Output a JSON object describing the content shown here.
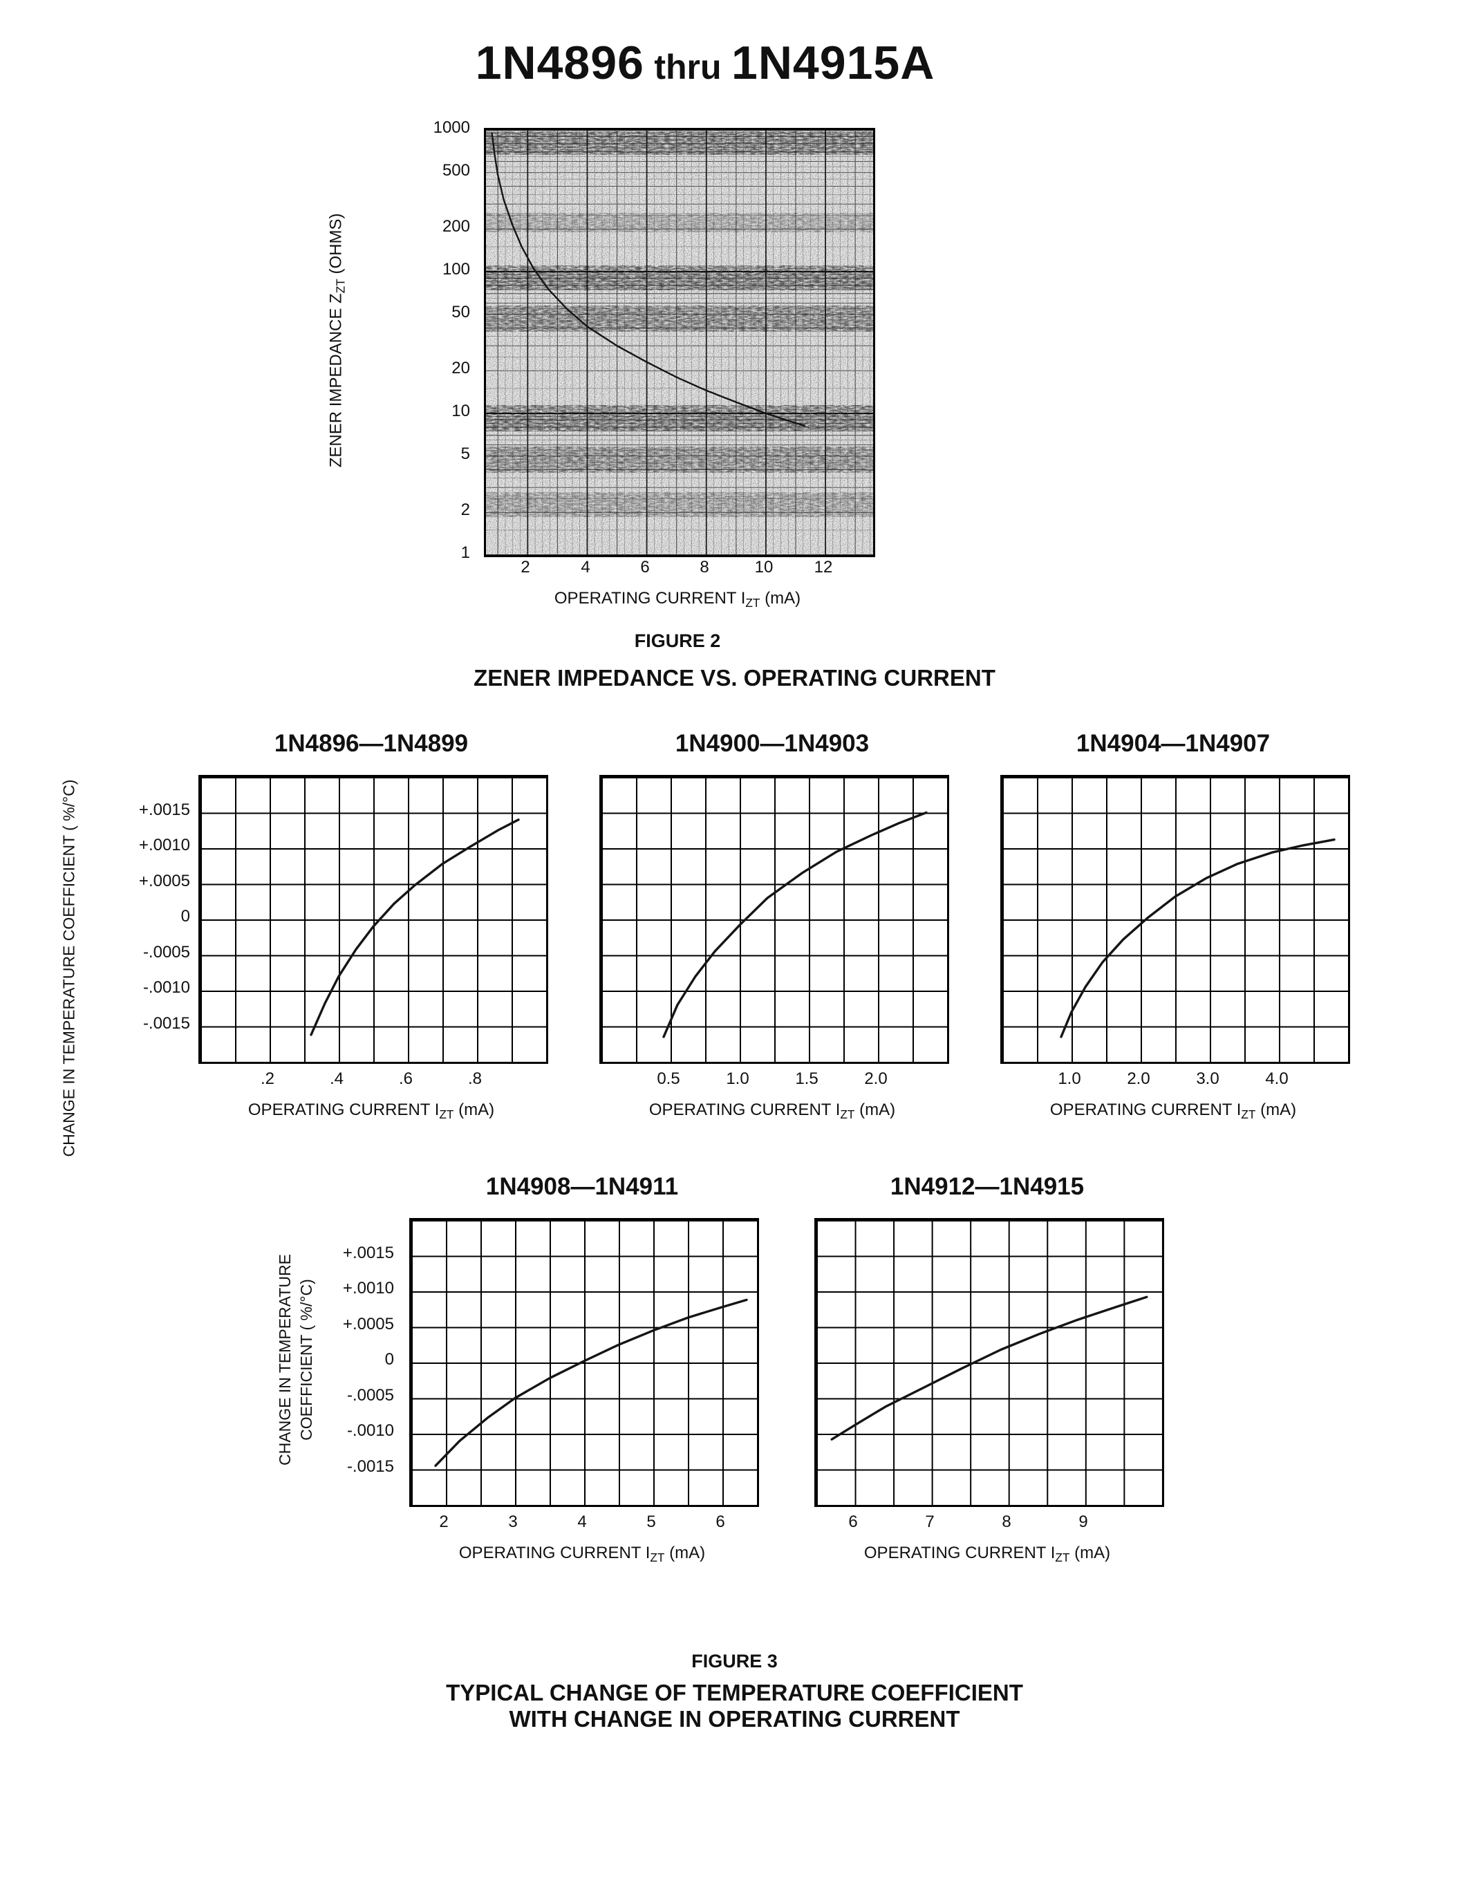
{
  "header": {
    "part_start": "1N4896",
    "thru": "thru",
    "part_end": "1N4915A"
  },
  "figure2": {
    "caption": "FIGURE 2",
    "heading": "ZENER IMPEDANCE VS. OPERATING CURRENT",
    "y_label": {
      "prefix": "ZENER IMPEDANCE Z",
      "sub": "ZT",
      "suffix": " (OHMS)"
    },
    "x_label": {
      "prefix": "OPERATING CURRENT I",
      "sub": "ZT",
      "suffix": " (mA)"
    },
    "y_ticks": [
      "1000",
      "500",
      "200",
      "100",
      "50",
      "20",
      "10",
      "5",
      "2",
      "1"
    ],
    "x_ticks": [
      "2",
      "4",
      "6",
      "8",
      "10",
      "12"
    ]
  },
  "figure3": {
    "caption": "FIGURE 3",
    "heading_line1": "TYPICAL CHANGE OF TEMPERATURE COEFFICIENT",
    "heading_line2": "WITH CHANGE IN OPERATING CURRENT",
    "row1_y_axis_title": "CHANGE IN TEMPERATURE COEFFICIENT ( %/°C)",
    "row2_y_axis_title_line1": "CHANGE IN TEMPERATURE",
    "row2_y_axis_title_line2": "COEFFICIENT ( %/°C)",
    "x_label": {
      "prefix": "OPERATING CURRENT I",
      "sub": "ZT",
      "suffix": " (mA)"
    },
    "y_ticks": [
      "+.0015",
      "+.0010",
      "+.0005",
      "0",
      "-.0005",
      "-.0010",
      "-.0015"
    ],
    "charts": [
      {
        "title": "1N4896—1N4899",
        "x_ticks": [
          ".2",
          ".4",
          ".6",
          ".8"
        ]
      },
      {
        "title": "1N4900—1N4903",
        "x_ticks": [
          "0.5",
          "1.0",
          "1.5",
          "2.0"
        ]
      },
      {
        "title": "1N4904—1N4907",
        "x_ticks": [
          "1.0",
          "2.0",
          "3.0",
          "4.0"
        ]
      },
      {
        "title": "1N4908—1N4911",
        "x_ticks": [
          "2",
          "3",
          "4",
          "5",
          "6"
        ]
      },
      {
        "title": "1N4912—1N4915",
        "x_ticks": [
          "6",
          "7",
          "8",
          "9"
        ]
      }
    ]
  },
  "chart_data": [
    {
      "id": "fig2",
      "type": "line",
      "title": "ZENER IMPEDANCE VS. OPERATING CURRENT",
      "xlabel": "OPERATING CURRENT IZT (mA)",
      "ylabel": "ZENER IMPEDANCE ZZT (OHMS)",
      "xlog": false,
      "ylog": true,
      "xlim": [
        0.6,
        13.6
      ],
      "ylim": [
        1,
        1000
      ],
      "x_ticks": [
        2,
        4,
        6,
        8,
        10,
        12
      ],
      "y_ticks": [
        1000,
        500,
        200,
        100,
        50,
        20,
        10,
        5,
        2,
        1
      ],
      "x": [
        0.8,
        0.9,
        1.0,
        1.2,
        1.5,
        1.8,
        2.2,
        2.7,
        3.3,
        4.0,
        5.0,
        6.0,
        7.0,
        8.0,
        9.0,
        10.0,
        10.8,
        11.3
      ],
      "y": [
        950,
        650,
        480,
        320,
        210,
        150,
        105,
        75,
        55,
        41,
        30,
        23,
        18,
        14.5,
        12,
        10,
        8.8,
        8.2
      ],
      "stroke_width": 2.4
    },
    {
      "id": "tc1",
      "type": "line",
      "title": "1N4896—1N4899",
      "xlabel": "OPERATING CURRENT IZT (mA)",
      "ylabel": "CHANGE IN TEMPERATURE COEFFICIENT ( %/°C)",
      "xlim": [
        0,
        1.0
      ],
      "ylim": [
        -0.002,
        0.002
      ],
      "x_ticks": [
        0.2,
        0.4,
        0.6,
        0.8
      ],
      "x": [
        0.32,
        0.36,
        0.4,
        0.45,
        0.5,
        0.56,
        0.62,
        0.7,
        0.78,
        0.86,
        0.92
      ],
      "y": [
        -0.00162,
        -0.00118,
        -0.0008,
        -0.00042,
        -0.0001,
        0.00022,
        0.00048,
        0.00078,
        0.00102,
        0.00125,
        0.0014
      ]
    },
    {
      "id": "tc2",
      "type": "line",
      "title": "1N4900—1N4903",
      "xlabel": "OPERATING CURRENT IZT (mA)",
      "ylabel": "CHANGE IN TEMPERATURE COEFFICIENT ( %/°C)",
      "xlim": [
        0,
        2.5
      ],
      "ylim": [
        -0.002,
        0.002
      ],
      "x_ticks": [
        0.5,
        1.0,
        1.5,
        2.0
      ],
      "x": [
        0.45,
        0.55,
        0.68,
        0.82,
        1.0,
        1.2,
        1.45,
        1.7,
        1.95,
        2.15,
        2.35
      ],
      "y": [
        -0.00165,
        -0.0012,
        -0.0008,
        -0.00045,
        -8e-05,
        0.0003,
        0.00065,
        0.00095,
        0.00118,
        0.00135,
        0.0015
      ]
    },
    {
      "id": "tc3",
      "type": "line",
      "title": "1N4904—1N4907",
      "xlabel": "OPERATING CURRENT IZT (mA)",
      "ylabel": "CHANGE IN TEMPERATURE COEFFICIENT ( %/°C)",
      "xlim": [
        0,
        5.0
      ],
      "ylim": [
        -0.002,
        0.002
      ],
      "x_ticks": [
        1.0,
        2.0,
        3.0,
        4.0
      ],
      "x": [
        0.85,
        1.0,
        1.2,
        1.45,
        1.75,
        2.1,
        2.5,
        2.95,
        3.4,
        3.9,
        4.35,
        4.8
      ],
      "y": [
        -0.00165,
        -0.0013,
        -0.00095,
        -0.0006,
        -0.00028,
        2e-05,
        0.00032,
        0.00058,
        0.00078,
        0.00094,
        0.00104,
        0.00112
      ]
    },
    {
      "id": "tc4",
      "type": "line",
      "title": "1N4908—1N4911",
      "xlabel": "OPERATING CURRENT IZT (mA)",
      "ylabel": "CHANGE IN TEMPERATURE COEFFICIENT ( %/°C)",
      "xlim": [
        1.5,
        6.5
      ],
      "ylim": [
        -0.002,
        0.002
      ],
      "x_ticks": [
        2,
        3,
        4,
        5,
        6
      ],
      "x": [
        1.85,
        2.2,
        2.6,
        3.0,
        3.5,
        4.0,
        4.5,
        5.0,
        5.5,
        6.0,
        6.35
      ],
      "y": [
        -0.00145,
        -0.0011,
        -0.00078,
        -0.0005,
        -0.00022,
        2e-05,
        0.00025,
        0.00045,
        0.00063,
        0.00078,
        0.00088
      ]
    },
    {
      "id": "tc5",
      "type": "line",
      "title": "1N4912—1N4915",
      "xlabel": "OPERATING CURRENT IZT (mA)",
      "ylabel": "CHANGE IN TEMPERATURE COEFFICIENT ( %/°C)",
      "xlim": [
        5.5,
        10.0
      ],
      "ylim": [
        -0.002,
        0.002
      ],
      "x_ticks": [
        6,
        7,
        8,
        9
      ],
      "x": [
        5.7,
        6.0,
        6.4,
        6.9,
        7.4,
        7.9,
        8.4,
        8.9,
        9.4,
        9.8
      ],
      "y": [
        -0.00108,
        -0.00088,
        -0.00062,
        -0.00035,
        -8e-05,
        0.00018,
        0.0004,
        0.0006,
        0.00078,
        0.00092
      ]
    }
  ]
}
